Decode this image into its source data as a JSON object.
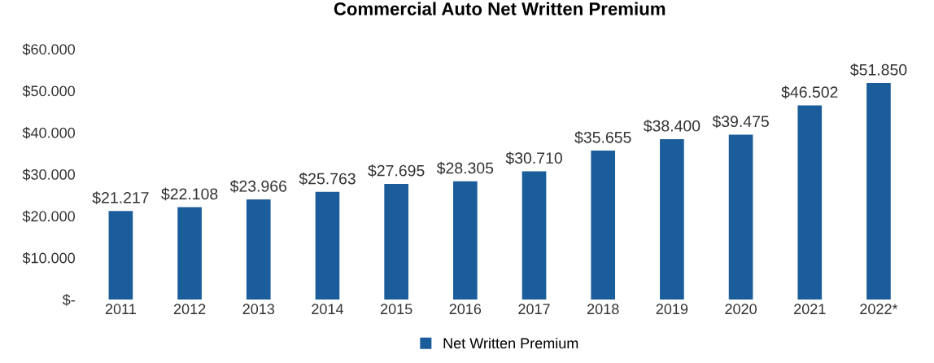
{
  "chart_data": {
    "type": "bar",
    "title": "Commercial Auto Net Written Premium",
    "categories": [
      "2011",
      "2012",
      "2013",
      "2014",
      "2015",
      "2016",
      "2017",
      "2018",
      "2019",
      "2020",
      "2021",
      "2022*"
    ],
    "series": [
      {
        "name": "Net Written Premium",
        "color": "#1b5c9b",
        "values": [
          21217,
          22108,
          23966,
          25763,
          27695,
          28305,
          30710,
          35655,
          38400,
          39475,
          46502,
          51850
        ],
        "value_labels": [
          "$21.217",
          "$22.108",
          "$23.966",
          "$25.763",
          "$27.695",
          "$28.305",
          "$30.710",
          "$35.655",
          "$38.400",
          "$39.475",
          "$46.502",
          "$51.850"
        ]
      }
    ],
    "ylim": [
      0,
      60000
    ],
    "yticks": [
      {
        "value": 0,
        "label": "$-"
      },
      {
        "value": 10000,
        "label": "$10.000"
      },
      {
        "value": 20000,
        "label": "$20.000"
      },
      {
        "value": 30000,
        "label": "$30.000"
      },
      {
        "value": 40000,
        "label": "$40.000"
      },
      {
        "value": 50000,
        "label": "$50.000"
      },
      {
        "value": 60000,
        "label": "$60.000"
      }
    ],
    "grid": false,
    "legend": "bottom"
  }
}
